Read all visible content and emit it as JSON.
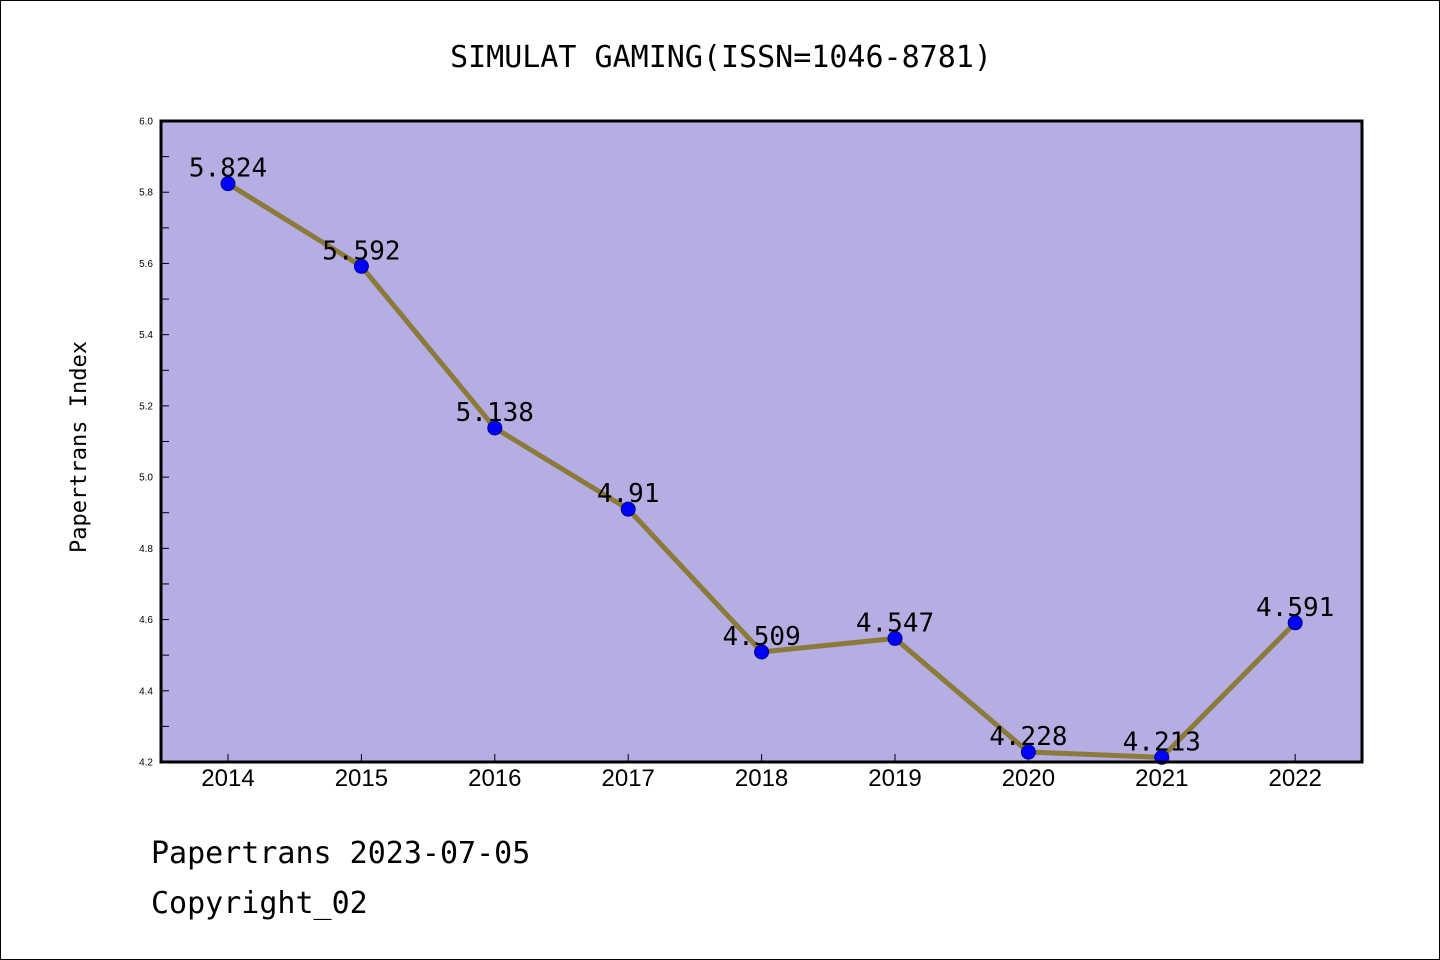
{
  "colors": {
    "plot_background": "#b4aee2",
    "line": "#8b7a3a",
    "marker": "#0000ff",
    "frame": "#000000"
  },
  "chart_data": {
    "type": "line",
    "title": "SIMULAT GAMING(ISSN=1046-8781)",
    "xlabel": "",
    "ylabel": "Papertrans Index",
    "categories": [
      "2014",
      "2015",
      "2016",
      "2017",
      "2018",
      "2019",
      "2020",
      "2021",
      "2022"
    ],
    "series": [
      {
        "values": [
          5.824,
          5.592,
          5.138,
          4.91,
          4.509,
          4.547,
          4.228,
          4.213,
          4.591
        ],
        "labels": [
          "5.824",
          "5.592",
          "5.138",
          "4.91",
          "4.509",
          "4.547",
          "4.228",
          "4.213",
          "4.591"
        ]
      }
    ],
    "ylim": [
      4.2,
      6.0
    ],
    "yticks": [
      "4.2",
      "4.4",
      "4.6",
      "4.8",
      "5.0",
      "5.2",
      "5.4",
      "5.6",
      "5.8",
      "6.0"
    ],
    "grid": false,
    "legend": "none",
    "marker": "circle"
  },
  "footer": {
    "date_line": "Papertrans 2023-07-05",
    "copyright_line": "Copyright_02"
  }
}
